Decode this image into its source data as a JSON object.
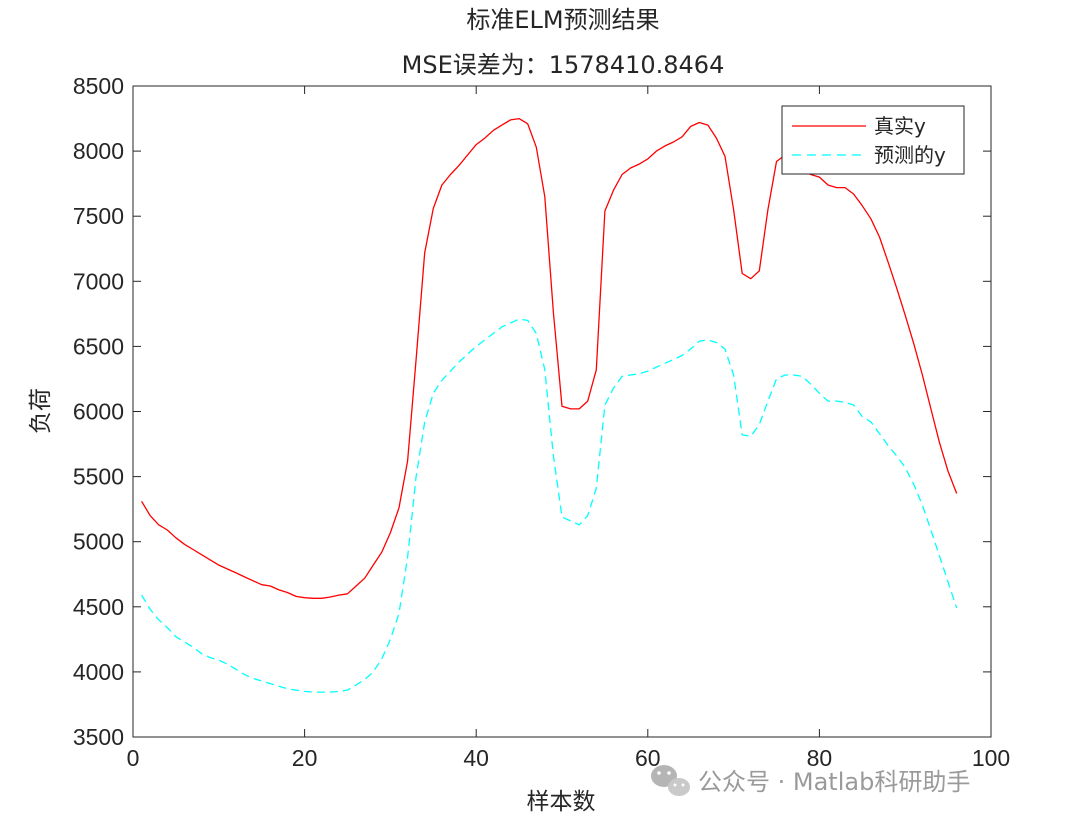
{
  "chart_data": {
    "type": "line",
    "title": "标准ELM预测结果",
    "subtitle": "MSE误差为：1578410.8464",
    "xlabel": "样本数",
    "ylabel": "负荷",
    "xlim": [
      0,
      100
    ],
    "ylim": [
      3500,
      8500
    ],
    "xticks": [
      0,
      20,
      40,
      60,
      80,
      100
    ],
    "yticks": [
      3500,
      4000,
      4500,
      5000,
      5500,
      6000,
      6500,
      7000,
      7500,
      8000,
      8500
    ],
    "grid": false,
    "legend_position": "top-right",
    "x": [
      1,
      2,
      3,
      4,
      5,
      6,
      7,
      8,
      9,
      10,
      11,
      12,
      13,
      14,
      15,
      16,
      17,
      18,
      19,
      20,
      21,
      22,
      23,
      24,
      25,
      26,
      27,
      28,
      29,
      30,
      31,
      32,
      33,
      34,
      35,
      36,
      37,
      38,
      39,
      40,
      41,
      42,
      43,
      44,
      45,
      46,
      47,
      48,
      49,
      50,
      51,
      52,
      53,
      54,
      55,
      56,
      57,
      58,
      59,
      60,
      61,
      62,
      63,
      64,
      65,
      66,
      67,
      68,
      69,
      70,
      71,
      72,
      73,
      74,
      75,
      76,
      77,
      78,
      79,
      80,
      81,
      82,
      83,
      84,
      85,
      86,
      87,
      88,
      89,
      90,
      91,
      92,
      93,
      94,
      95,
      96
    ],
    "series": [
      {
        "name": "真实y",
        "color": "#ff0000",
        "style": "solid",
        "values": [
          5310,
          5200,
          5130,
          5090,
          5030,
          4980,
          4940,
          4900,
          4860,
          4820,
          4790,
          4760,
          4730,
          4700,
          4670,
          4660,
          4630,
          4610,
          4580,
          4570,
          4565,
          4565,
          4575,
          4590,
          4600,
          4660,
          4720,
          4820,
          4920,
          5070,
          5260,
          5620,
          6400,
          7220,
          7560,
          7740,
          7820,
          7890,
          7970,
          8050,
          8100,
          8160,
          8200,
          8240,
          8250,
          8210,
          8030,
          7650,
          6760,
          6040,
          6020,
          6020,
          6080,
          6320,
          7540,
          7700,
          7820,
          7870,
          7900,
          7940,
          8000,
          8040,
          8070,
          8110,
          8190,
          8220,
          8200,
          8100,
          7960,
          7550,
          7060,
          7020,
          7080,
          7550,
          7920,
          7970,
          7900,
          7850,
          7820,
          7800,
          7740,
          7720,
          7720,
          7670,
          7580,
          7480,
          7340,
          7150,
          6950,
          6740,
          6520,
          6280,
          6020,
          5760,
          5540,
          5370
        ]
      },
      {
        "name": "预测的y",
        "color": "#00ffff",
        "style": "dashed",
        "values": [
          4590,
          4480,
          4400,
          4340,
          4270,
          4230,
          4190,
          4140,
          4110,
          4090,
          4060,
          4020,
          3980,
          3950,
          3930,
          3910,
          3890,
          3870,
          3860,
          3850,
          3845,
          3845,
          3845,
          3850,
          3860,
          3900,
          3940,
          4000,
          4100,
          4250,
          4450,
          4880,
          5500,
          5920,
          6140,
          6240,
          6310,
          6380,
          6440,
          6500,
          6550,
          6600,
          6650,
          6680,
          6710,
          6700,
          6600,
          6320,
          5660,
          5190,
          5160,
          5130,
          5200,
          5410,
          6050,
          6180,
          6270,
          6280,
          6290,
          6310,
          6340,
          6370,
          6400,
          6430,
          6480,
          6540,
          6550,
          6530,
          6480,
          6280,
          5820,
          5810,
          5900,
          6080,
          6250,
          6280,
          6280,
          6270,
          6210,
          6140,
          6080,
          6080,
          6070,
          6050,
          5960,
          5920,
          5830,
          5740,
          5660,
          5570,
          5440,
          5280,
          5090,
          4890,
          4690,
          4490
        ]
      }
    ]
  },
  "watermark": {
    "icon": "wechat-icon",
    "text": "公众号 · Matlab科研助手"
  }
}
